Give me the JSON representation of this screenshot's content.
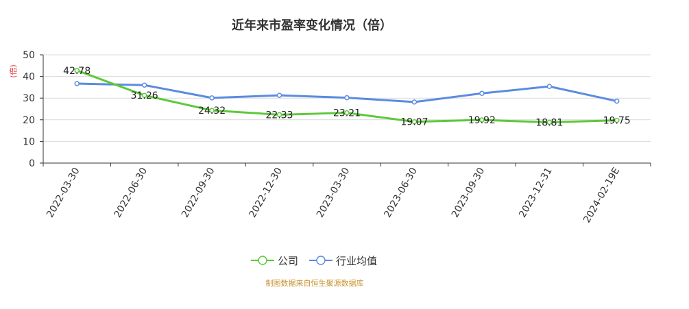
{
  "chart_data": {
    "type": "line",
    "title": "近年来市盈率变化情况（倍）",
    "ylabel": "(倍)",
    "xlabel": "",
    "categories": [
      "2022-03-30",
      "2022-06-30",
      "2022-09-30",
      "2022-12-30",
      "2023-03-30",
      "2023-06-30",
      "2023-09-30",
      "2023-12-31",
      "2024-02-19E"
    ],
    "yticks": [
      0,
      10,
      20,
      30,
      40,
      50
    ],
    "ylim": [
      0,
      50
    ],
    "grid": true,
    "legend_position": "bottom",
    "series": [
      {
        "name": "公司",
        "color": "#5cc93a",
        "values": [
          42.78,
          31.26,
          24.32,
          22.33,
          23.21,
          19.07,
          19.92,
          18.81,
          19.75
        ],
        "labels": [
          "42.78",
          "31.26",
          "24.32",
          "22.33",
          "23.21",
          "19.07",
          "19.92",
          "18.81",
          "19.75"
        ]
      },
      {
        "name": "行业均值",
        "color": "#5b8be0",
        "values": [
          36.7,
          36.0,
          30.1,
          31.3,
          30.2,
          28.2,
          32.2,
          35.4,
          28.6
        ]
      }
    ],
    "source": "制图数据来自恒生聚源数据库"
  }
}
